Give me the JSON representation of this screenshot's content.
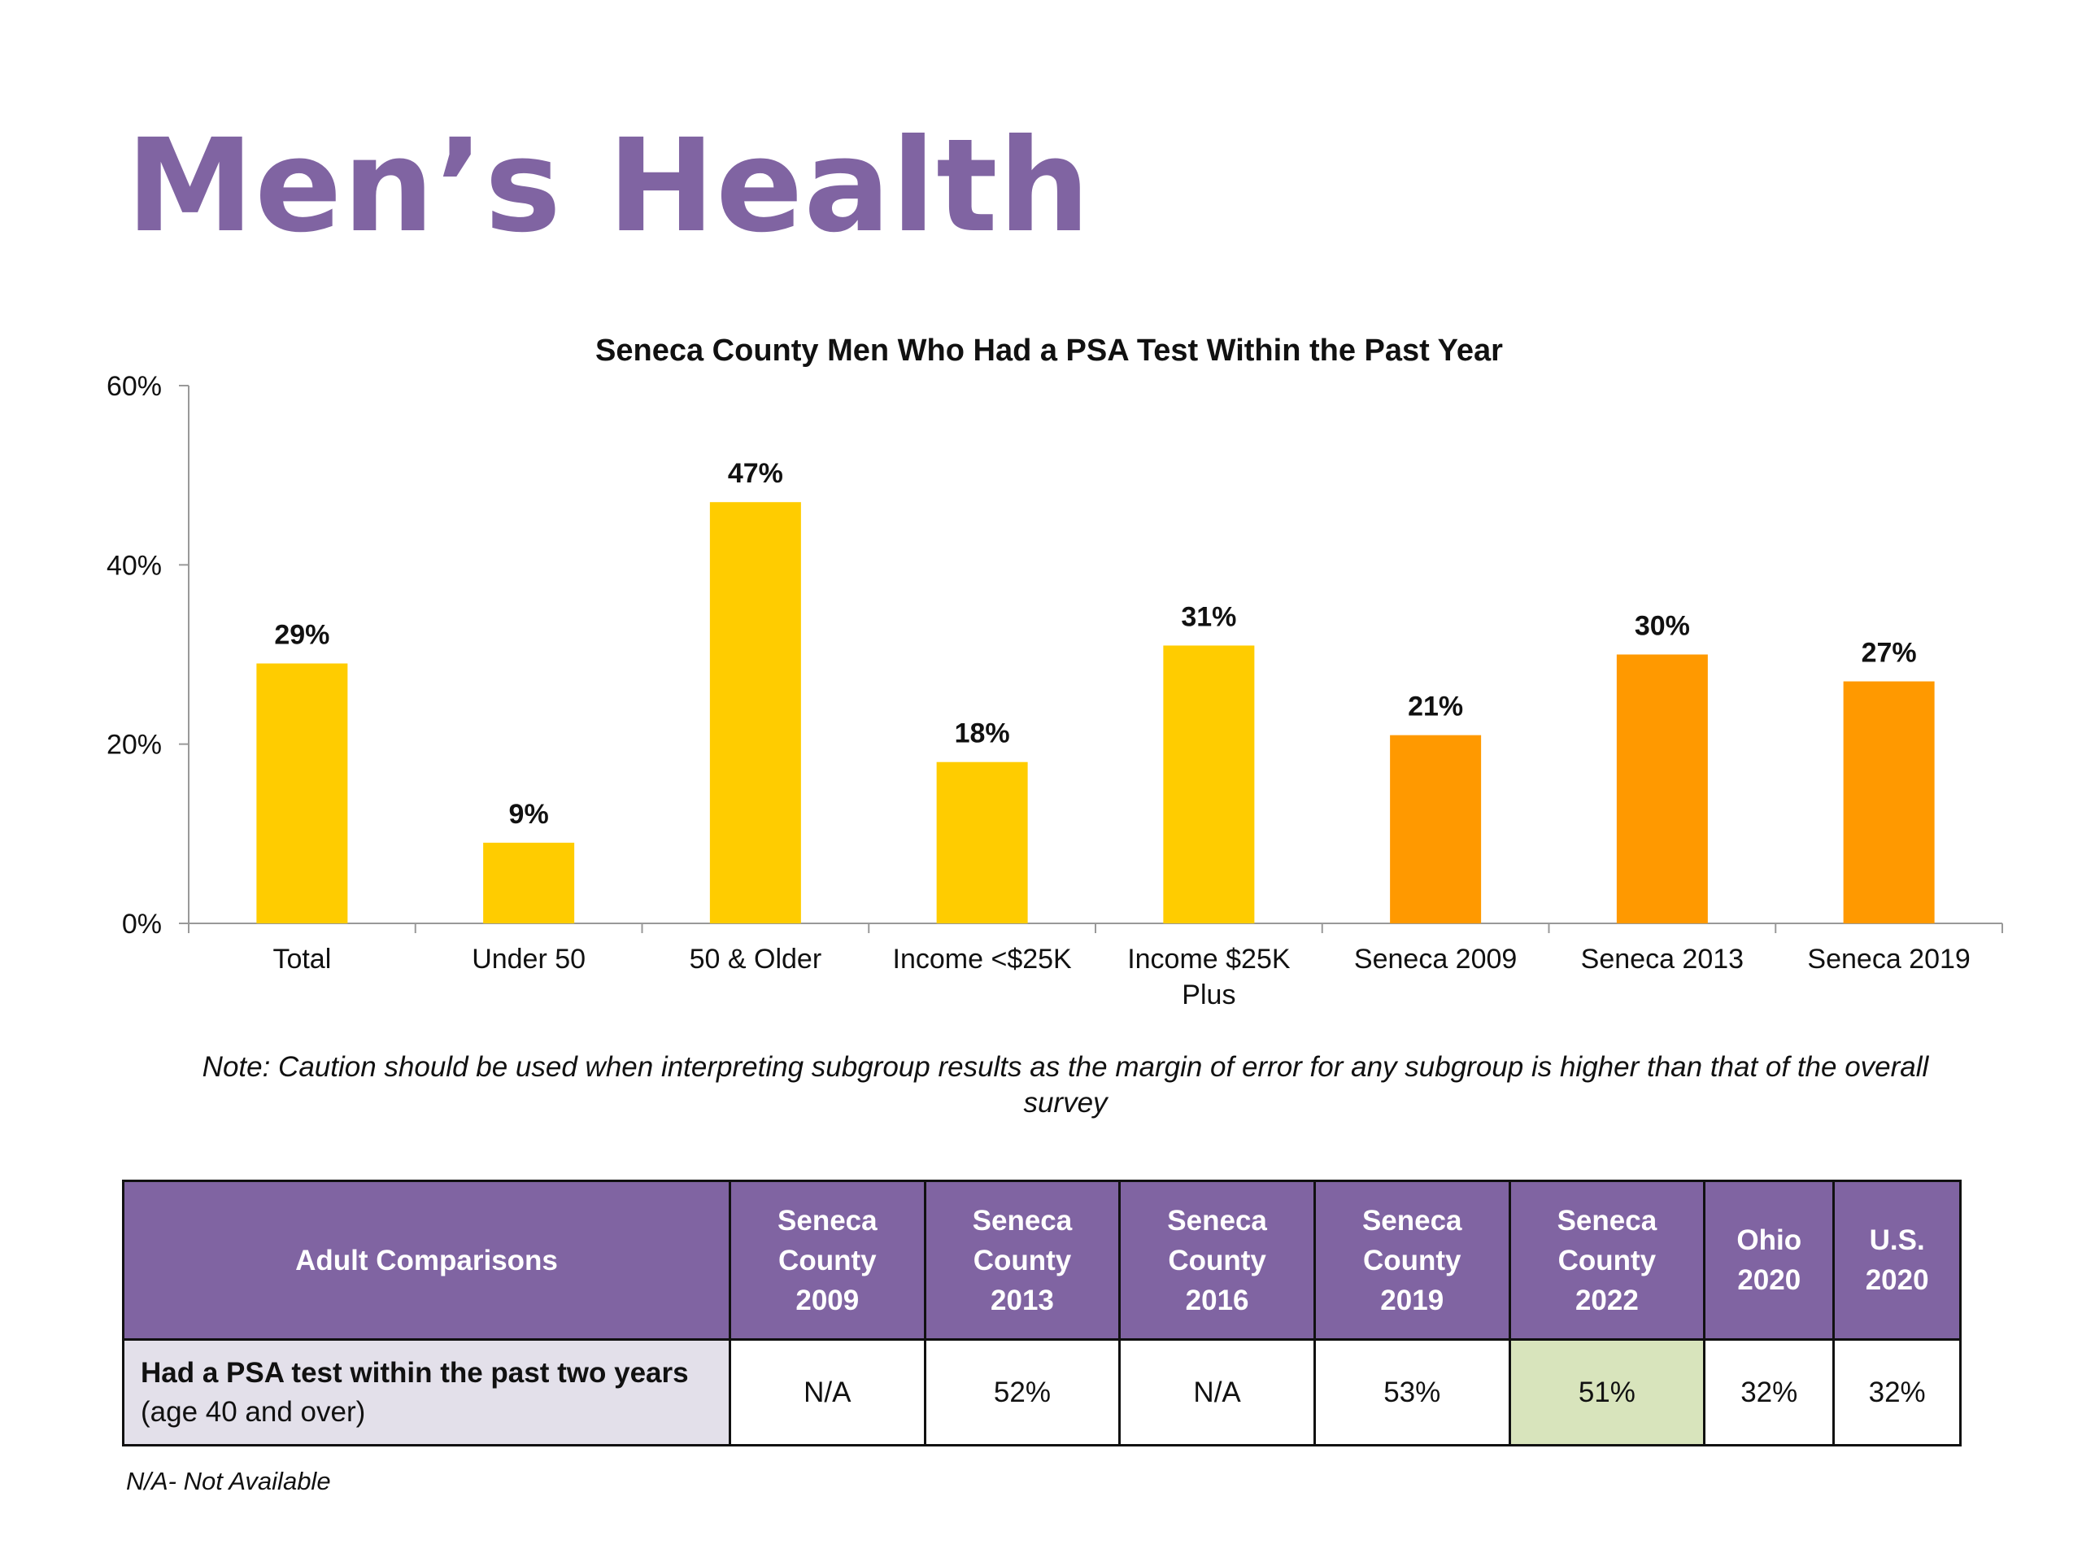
{
  "title": "Men’s Health",
  "chart_data": {
    "type": "bar",
    "title": "Seneca County Men Who Had a PSA Test Within the Past Year",
    "categories": [
      "Total",
      "Under 50",
      "50 & Older",
      "Income <$25K",
      "Income $25K Plus",
      "Seneca 2009",
      "Seneca 2013",
      "Seneca 2019"
    ],
    "category_lines": [
      [
        "Total"
      ],
      [
        "Under 50"
      ],
      [
        "50 & Older"
      ],
      [
        "Income <$25K"
      ],
      [
        "Income $25K",
        "Plus"
      ],
      [
        "Seneca 2009"
      ],
      [
        "Seneca 2013"
      ],
      [
        "Seneca 2019"
      ]
    ],
    "values": [
      29,
      9,
      47,
      18,
      31,
      21,
      30,
      27
    ],
    "data_labels": [
      "29%",
      "9%",
      "47%",
      "18%",
      "31%",
      "21%",
      "30%",
      "27%"
    ],
    "colors": [
      "#ffcc00",
      "#ffcc00",
      "#ffcc00",
      "#ffcc00",
      "#ffcc00",
      "#ff9900",
      "#ff9900",
      "#ff9900"
    ],
    "yticks": [
      0,
      20,
      40,
      60
    ],
    "ytick_labels": [
      "0%",
      "20%",
      "40%",
      "60%"
    ],
    "ylim": [
      0,
      60
    ],
    "grid": false
  },
  "note": "Note: Caution should be used when interpreting subgroup results as the margin of error for any subgroup is higher than that of the overall survey",
  "table": {
    "header_first": "Adult Comparisons",
    "headers": [
      [
        "Seneca",
        "County",
        "2009"
      ],
      [
        "Seneca",
        "County",
        "2013"
      ],
      [
        "Seneca",
        "County",
        "2016"
      ],
      [
        "Seneca",
        "County",
        "2019"
      ],
      [
        "Seneca",
        "County",
        "2022"
      ],
      [
        "Ohio",
        "2020"
      ],
      [
        "U.S.",
        "2020"
      ]
    ],
    "rows": [
      {
        "label": "Had a PSA test within the past two years",
        "sublabel": "(age 40 and over)",
        "values": [
          "N/A",
          "52%",
          "N/A",
          "53%",
          "51%",
          "32%",
          "32%"
        ],
        "highlight_index": 4
      }
    ],
    "highlight_color": "#d8e4bc",
    "header_color": "#8064a2"
  },
  "footnote": "N/A- Not Available"
}
